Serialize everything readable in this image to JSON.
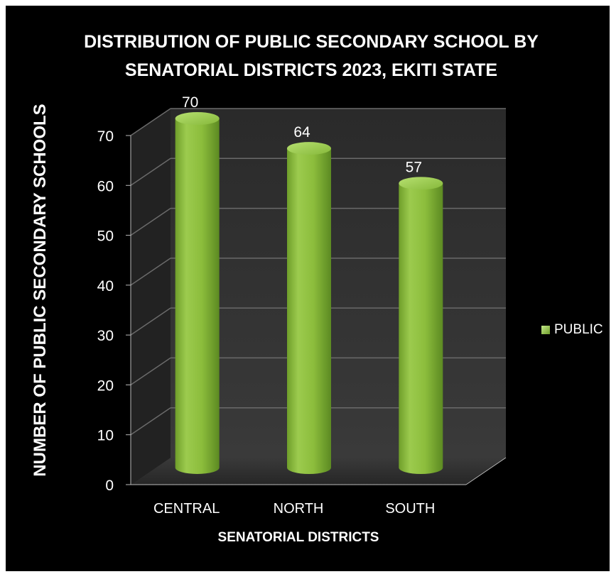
{
  "chart_data": {
    "type": "bar",
    "title_line1": "DISTRIBUTION OF PUBLIC SECONDARY SCHOOL  BY",
    "title_line2": "SENATORIAL DISTRICTS  2023,  EKITI STATE",
    "xlabel": "SENATORIAL DISTRICTS",
    "ylabel": "NUMBER OF PUBLIC  SECONDARY SCHOOLS",
    "categories": [
      "CENTRAL",
      "NORTH",
      "SOUTH"
    ],
    "series": [
      {
        "name": "PUBLIC",
        "values": [
          70,
          64,
          57
        ]
      }
    ],
    "ylim": [
      0,
      70
    ],
    "yticks": [
      0,
      10,
      20,
      30,
      40,
      50,
      60,
      70
    ],
    "grid": true,
    "legend_position": "right",
    "colors": {
      "bar": "#8dc03d",
      "background": "#000000",
      "wall": "#2e2e2e"
    }
  }
}
